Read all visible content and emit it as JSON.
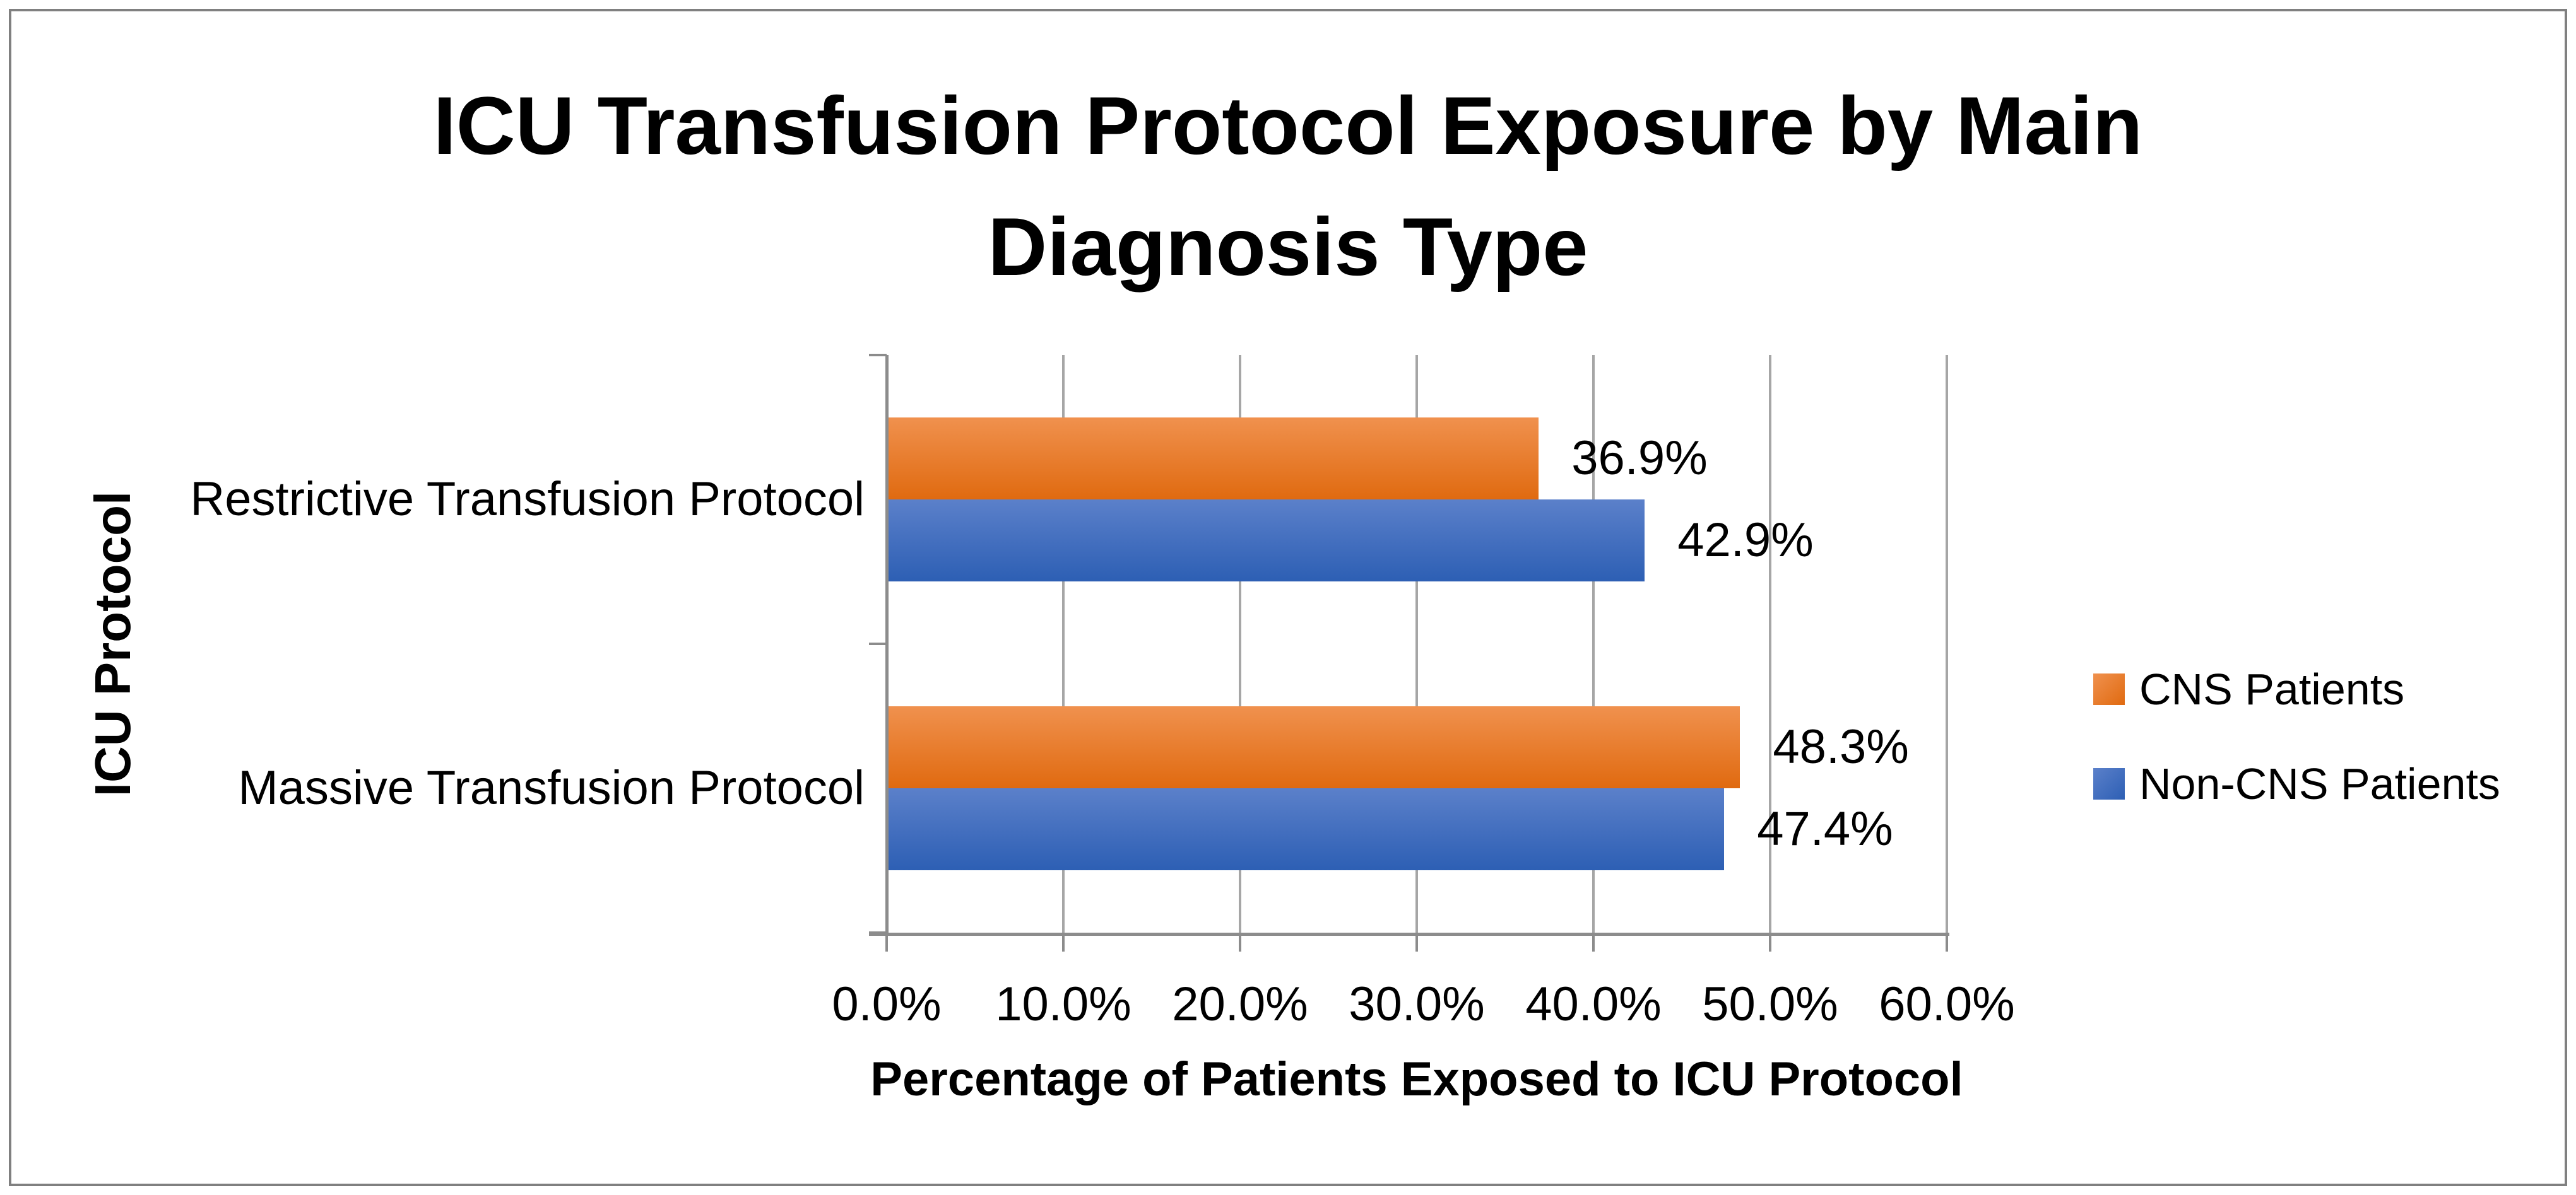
{
  "chart": {
    "title_lines": [
      "ICU Transfusion Protocol Exposure by Main",
      "Diagnosis Type"
    ],
    "x_axis_title": "Percentage of Patients Exposed to ICU Protocol",
    "y_axis_title": "ICU Protocol"
  },
  "chart_data": {
    "type": "bar",
    "orientation": "horizontal",
    "title": "ICU Transfusion Protocol Exposure by Main Diagnosis Type",
    "xlabel": "Percentage of Patients Exposed to ICU Protocol",
    "ylabel": "ICU Protocol",
    "categories": [
      "Restrictive Transfusion Protocol",
      "Massive Transfusion Protocol"
    ],
    "series": [
      {
        "name": "CNS Patients",
        "values": [
          36.9,
          48.3
        ],
        "labels": [
          "36.9%",
          "48.3%"
        ],
        "color_top": "#F0914E",
        "color_bottom": "#E06A10"
      },
      {
        "name": "Non-CNS Patients",
        "values": [
          42.9,
          47.4
        ],
        "labels": [
          "42.9%",
          "47.4%"
        ],
        "color_top": "#5B80CA",
        "color_bottom": "#2D5FB4"
      }
    ],
    "x_ticks": [
      "0.0%",
      "10.0%",
      "20.0%",
      "30.0%",
      "40.0%",
      "50.0%",
      "60.0%"
    ],
    "xlim": [
      0,
      60
    ],
    "grid": true,
    "legend_position": "right",
    "gridline_color": "#A6A6A6",
    "axis_color": "#8C8C8C",
    "border_color": "#808080"
  }
}
